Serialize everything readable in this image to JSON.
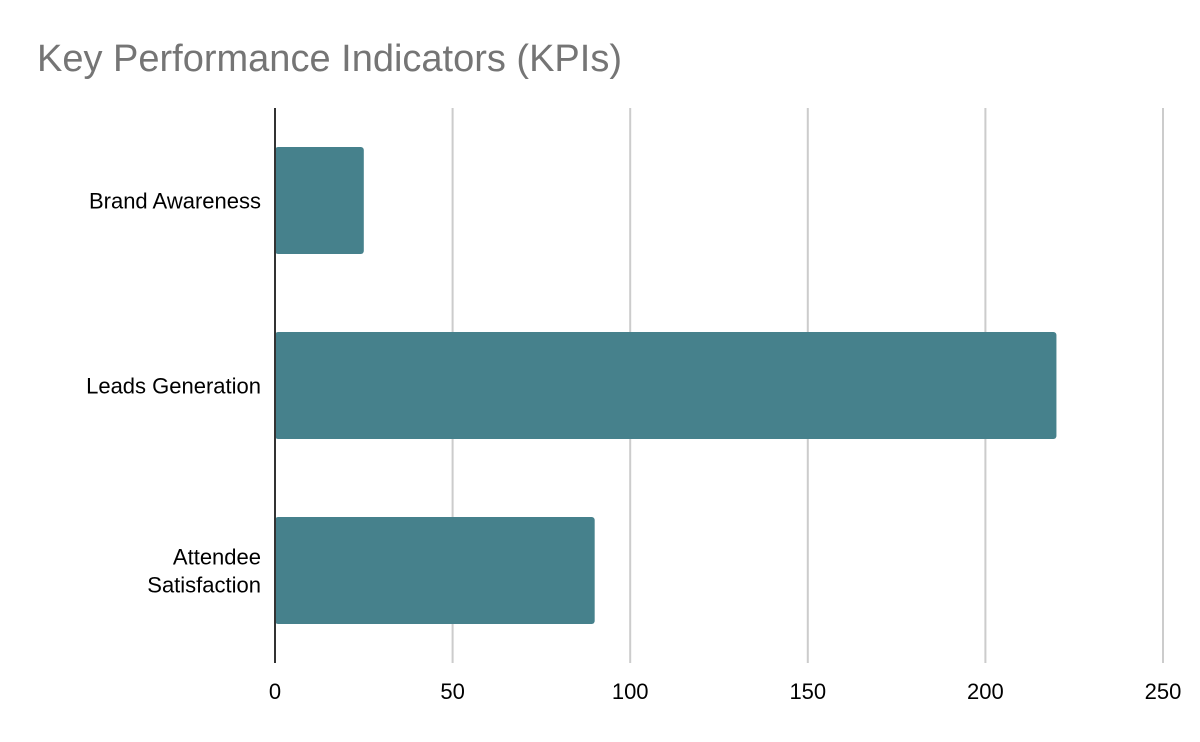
{
  "chart_data": {
    "type": "bar",
    "orientation": "horizontal",
    "title": "Key Performance Indicators (KPIs)",
    "categories": [
      "Brand Awareness",
      "Leads Generation",
      "Attendee Satisfaction"
    ],
    "category_label_lines": [
      [
        "Brand Awareness"
      ],
      [
        "Leads Generation"
      ],
      [
        "Attendee",
        "Satisfaction"
      ]
    ],
    "values": [
      25,
      220,
      90
    ],
    "xlim": [
      0,
      250
    ],
    "xticks": [
      0,
      50,
      100,
      150,
      200,
      250
    ],
    "xlabel": "",
    "ylabel": "",
    "grid": "vertical",
    "legend": "none",
    "colors": {
      "bar": "#46818c",
      "grid": "#cccccc",
      "axis": "#333333",
      "title": "#757575"
    }
  }
}
